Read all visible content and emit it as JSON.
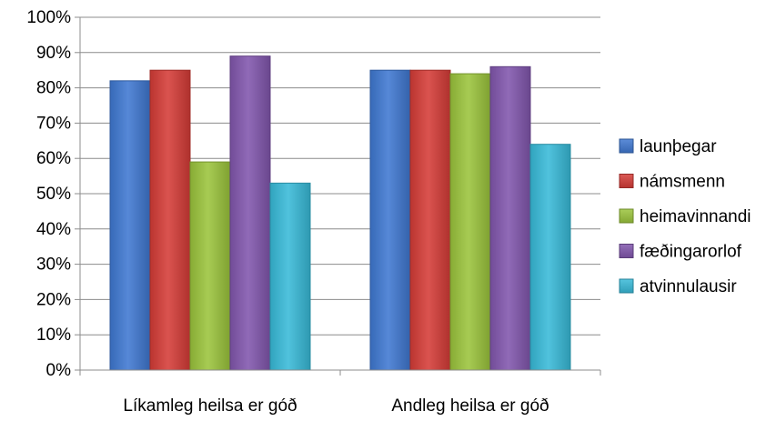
{
  "chart_data": {
    "type": "bar",
    "categories": [
      "Líkamleg heilsa er góð",
      "Andleg heilsa er góð"
    ],
    "series": [
      {
        "name": "launþegar",
        "values": [
          82,
          85
        ],
        "color": "#3f78d1"
      },
      {
        "name": "námsmenn",
        "values": [
          85,
          85
        ],
        "color": "#d53c37"
      },
      {
        "name": "heimavinnandi",
        "values": [
          59,
          84
        ],
        "color": "#9bc43c"
      },
      {
        "name": "fæðingarorlof",
        "values": [
          89,
          86
        ],
        "color": "#8156ad"
      },
      {
        "name": "atvinnulausir",
        "values": [
          53,
          64
        ],
        "color": "#38bad8"
      }
    ],
    "yticks": [
      "0%",
      "10%",
      "20%",
      "30%",
      "40%",
      "50%",
      "60%",
      "70%",
      "80%",
      "90%",
      "100%"
    ],
    "ylim": [
      0,
      100
    ],
    "grid": true,
    "legend_position": "right",
    "title": "",
    "xlabel": "",
    "ylabel": ""
  }
}
